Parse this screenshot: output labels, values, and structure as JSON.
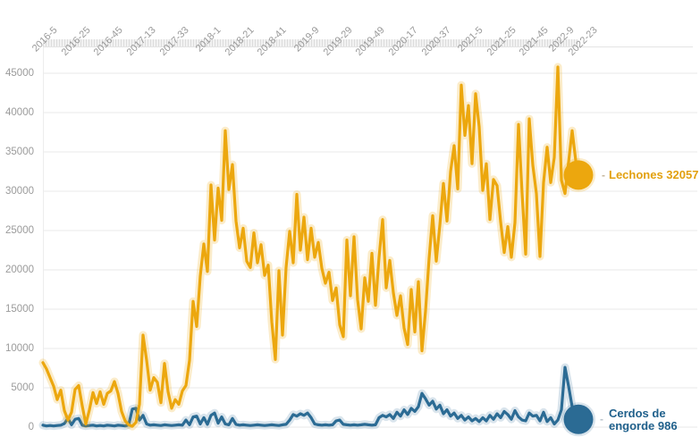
{
  "chart_data": {
    "type": "line",
    "title": "",
    "x_axis": {
      "position": "top",
      "range": "weekly data, approx 2015-47 through 2022-10",
      "ticks": [
        {
          "label": "2016-5",
          "x": 67
        },
        {
          "label": "2016-25",
          "x": 104
        },
        {
          "label": "2016-45",
          "x": 140
        },
        {
          "label": "2017-13",
          "x": 177
        },
        {
          "label": "2017-33",
          "x": 214
        },
        {
          "label": "2018-1",
          "x": 250
        },
        {
          "label": "2018-21",
          "x": 287
        },
        {
          "label": "2018-41",
          "x": 323
        },
        {
          "label": "2019-9",
          "x": 360
        },
        {
          "label": "2019-29",
          "x": 397
        },
        {
          "label": "2019-49",
          "x": 433
        },
        {
          "label": "2020-17",
          "x": 470
        },
        {
          "label": "2020-37",
          "x": 507
        },
        {
          "label": "2021-5",
          "x": 543
        },
        {
          "label": "2021-25",
          "x": 580
        },
        {
          "label": "2021-45",
          "x": 616
        },
        {
          "label": "2022-9",
          "x": 645
        },
        {
          "label": "2022-23",
          "x": 671
        }
      ]
    },
    "y_axis": {
      "ticks": [
        0,
        5000,
        10000,
        15000,
        20000,
        25000,
        30000,
        35000,
        40000,
        45000
      ],
      "min": 0,
      "max": 46000,
      "grid": true
    },
    "sampling": "151 evenly spaced weekly samples per series across the full x range",
    "series": [
      {
        "id": "cerdos",
        "name": "Cerdos de engorde",
        "color": "#2b6b94",
        "halo_color": "rgba(43,107,148,0.18)",
        "end_value": 986,
        "end_label": "Cerdos de engorde 986",
        "values": [
          250,
          150,
          200,
          150,
          200,
          250,
          450,
          1100,
          300,
          1000,
          1100,
          250,
          150,
          200,
          250,
          150,
          200,
          150,
          250,
          200,
          150,
          250,
          200,
          150,
          300,
          2300,
          2400,
          900,
          1500,
          400,
          250,
          300,
          250,
          200,
          300,
          250,
          200,
          250,
          300,
          250,
          900,
          300,
          1300,
          1400,
          400,
          1200,
          350,
          1500,
          1800,
          500,
          1300,
          400,
          300,
          1100,
          350,
          250,
          300,
          250,
          200,
          250,
          300,
          250,
          200,
          250,
          300,
          250,
          200,
          300,
          350,
          900,
          1600,
          1400,
          1700,
          1500,
          1800,
          1200,
          400,
          300,
          250,
          300,
          250,
          300,
          800,
          900,
          350,
          300,
          250,
          300,
          250,
          300,
          350,
          300,
          250,
          300,
          1200,
          1500,
          1300,
          1600,
          1100,
          1900,
          1400,
          2200,
          1600,
          2400,
          2000,
          2600,
          4300,
          3600,
          2800,
          3300,
          2300,
          2800,
          1700,
          2200,
          1400,
          1800,
          1100,
          1500,
          900,
          1300,
          800,
          1100,
          700,
          1200,
          800,
          1500,
          1000,
          1700,
          1200,
          2000,
          1600,
          1000,
          2100,
          1300,
          900,
          800,
          1800,
          1400,
          1500,
          800,
          1900,
          700,
          1200,
          400,
          900,
          2200,
          7600,
          5200,
          2600,
          1400,
          986
        ]
      },
      {
        "id": "lechones",
        "name": "Lechones",
        "color": "#eca70e",
        "halo_color": "rgba(236,167,14,0.22)",
        "end_value": 32057,
        "end_label": "Lechones 32057",
        "values": [
          8200,
          7400,
          6300,
          5200,
          3500,
          4700,
          2100,
          900,
          1900,
          4800,
          5300,
          2700,
          400,
          2200,
          4400,
          3000,
          4500,
          2900,
          4300,
          4600,
          5800,
          4300,
          2000,
          800,
          300,
          100,
          600,
          2900,
          11700,
          8500,
          4700,
          6300,
          5700,
          3100,
          8100,
          4500,
          2400,
          3500,
          2900,
          4600,
          5300,
          8500,
          16000,
          12800,
          19200,
          23300,
          19800,
          30800,
          23800,
          30400,
          26300,
          37700,
          30200,
          33400,
          26200,
          22800,
          25300,
          21100,
          20300,
          24700,
          20900,
          23200,
          19300,
          20600,
          13400,
          8600,
          19900,
          11700,
          20300,
          24900,
          20900,
          29600,
          22500,
          26700,
          21300,
          25300,
          21600,
          23500,
          20200,
          18300,
          19700,
          16100,
          17700,
          13000,
          11500,
          23800,
          16700,
          24200,
          16200,
          12500,
          19000,
          16000,
          22100,
          15500,
          21600,
          26400,
          17700,
          21200,
          17100,
          14200,
          16700,
          12600,
          10500,
          17500,
          12100,
          18500,
          9700,
          14800,
          21500,
          26900,
          21100,
          25700,
          31000,
          26200,
          32500,
          35800,
          30300,
          43500,
          37100,
          40900,
          33500,
          42400,
          38200,
          30100,
          33500,
          26400,
          31500,
          30700,
          26100,
          22200,
          25500,
          21600,
          26000,
          38500,
          29700,
          22000,
          39200,
          33300,
          29700,
          21700,
          31100,
          35600,
          31100,
          34300,
          45800,
          31400,
          29700,
          33700,
          37700,
          33900,
          32057
        ]
      }
    ]
  },
  "legend": {
    "lechones": {
      "dash": "-",
      "label": "Lechones 32057"
    },
    "cerdos": {
      "dash": "-",
      "line1": "Cerdos de",
      "line2": "engorde 986"
    }
  },
  "colors": {
    "lechones": "#eca70e",
    "cerdos": "#2b6b94",
    "gridline": "#e9e9e9",
    "axis_text": "#999999",
    "background": "#ffffff"
  }
}
